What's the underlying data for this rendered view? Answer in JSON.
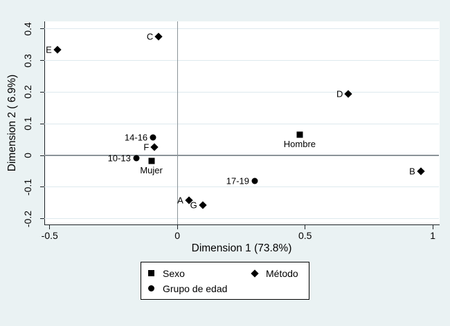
{
  "figure": {
    "colors": {
      "background": "#eaf2f3",
      "plot-bg": "#ffffff",
      "grid": "#dde9ee",
      "ref-line": "#8a9398",
      "axis": "#1c2226",
      "marker": "#000000",
      "text": "#000000",
      "legend-border": "#000000"
    }
  },
  "chart_data": {
    "type": "scatter",
    "title": "",
    "xlabel": "Dimension 1 (73.8%)",
    "ylabel": "Dimension 2 ( 6.9%)",
    "xlim": [
      -0.521,
      1.024
    ],
    "ylim": [
      -0.218,
      0.4235
    ],
    "grid": "horizontal-only",
    "legend_position": "bottom",
    "x_ticks": [
      {
        "value": -0.5,
        "label": "-0.5"
      },
      {
        "value": 0,
        "label": "0"
      },
      {
        "value": 0.5,
        "label": "0.5"
      },
      {
        "value": 1,
        "label": "1"
      }
    ],
    "y_ticks": [
      {
        "value": -0.2,
        "label": "-0.2"
      },
      {
        "value": -0.1,
        "label": "-0.1"
      },
      {
        "value": 0,
        "label": "0"
      },
      {
        "value": 0.1,
        "label": "0.1"
      },
      {
        "value": 0.2,
        "label": "0.2"
      },
      {
        "value": 0.3,
        "label": "0.3"
      },
      {
        "value": 0.4,
        "label": "0.4"
      }
    ],
    "ref_lines": {
      "x": 0,
      "y": 0
    },
    "series": [
      {
        "name": "Sexo",
        "marker": "square",
        "points": [
          {
            "label": "Hombre",
            "x": 0.479,
            "y": 0.066,
            "label_pos": "below"
          },
          {
            "label": "Mujer",
            "x": -0.102,
            "y": -0.017,
            "label_pos": "below"
          }
        ]
      },
      {
        "name": "Método",
        "marker": "diamond",
        "points": [
          {
            "label": "A",
            "x": 0.045,
            "y": -0.141,
            "label_pos": "left"
          },
          {
            "label": "B",
            "x": 0.953,
            "y": -0.049,
            "label_pos": "left"
          },
          {
            "label": "C",
            "x": -0.073,
            "y": 0.375,
            "label_pos": "left"
          },
          {
            "label": "D",
            "x": 0.67,
            "y": 0.194,
            "label_pos": "left"
          },
          {
            "label": "E",
            "x": -0.47,
            "y": 0.333,
            "label_pos": "left"
          },
          {
            "label": "F",
            "x": -0.089,
            "y": 0.026,
            "label_pos": "left"
          },
          {
            "label": "G",
            "x": 0.099,
            "y": -0.156,
            "label_pos": "left"
          }
        ]
      },
      {
        "name": "Grupo de edad",
        "marker": "circle",
        "points": [
          {
            "label": "10-13",
            "x": -0.161,
            "y": -0.008,
            "label_pos": "left"
          },
          {
            "label": "14-16",
            "x": -0.095,
            "y": 0.057,
            "label_pos": "left"
          },
          {
            "label": "17-19",
            "x": 0.303,
            "y": -0.08,
            "label_pos": "left"
          }
        ]
      }
    ],
    "legend": {
      "entries": [
        {
          "label": "Sexo",
          "marker": "square"
        },
        {
          "label": "Método",
          "marker": "diamond"
        },
        {
          "label": "Grupo de edad",
          "marker": "circle"
        }
      ]
    }
  }
}
